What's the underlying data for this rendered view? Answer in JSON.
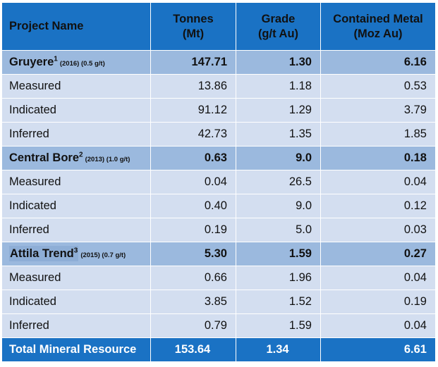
{
  "headers": {
    "name": "Project Name",
    "tonnes": [
      "Tonnes",
      "(Mt)"
    ],
    "grade": [
      "Grade",
      "(g/t Au)"
    ],
    "metal": [
      "Contained Metal",
      "(Moz Au)"
    ]
  },
  "groups": [
    {
      "name": "Gruyere",
      "sup": "1",
      "note": "(2016) (0.5 g/t)",
      "tonnes": "147.71",
      "grade": "1.30",
      "metal": "6.16",
      "rows": [
        {
          "label": "Measured",
          "tonnes": "13.86",
          "grade": "1.18",
          "metal": "0.53"
        },
        {
          "label": "Indicated",
          "tonnes": "91.12",
          "grade": "1.29",
          "metal": "3.79"
        },
        {
          "label": "Inferred",
          "tonnes": "42.73",
          "grade": "1.35",
          "metal": "1.85"
        }
      ]
    },
    {
      "name": "Central Bore",
      "sup": "2",
      "note": "(2013) (1.0 g/t)",
      "tonnes": "0.63",
      "grade": "9.0",
      "metal": "0.18",
      "rows": [
        {
          "label": "Measured",
          "tonnes": "0.04",
          "grade": "26.5",
          "metal": "0.04"
        },
        {
          "label": "Indicated",
          "tonnes": "0.40",
          "grade": "9.0",
          "metal": "0.12"
        },
        {
          "label": "Inferred",
          "tonnes": "0.19",
          "grade": "5.0",
          "metal": "0.03"
        }
      ]
    },
    {
      "name": "Attila Trend",
      "sup": "3",
      "note": "(2015) (0.7 g/t)",
      "tonnes": "5.30",
      "grade": "1.59",
      "metal": "0.27",
      "rows": [
        {
          "label": "Measured",
          "tonnes": "0.66",
          "grade": "1.96",
          "metal": "0.04"
        },
        {
          "label": "Indicated",
          "tonnes": "3.85",
          "grade": "1.52",
          "metal": "0.19"
        },
        {
          "label": "Inferred",
          "tonnes": "0.79",
          "grade": "1.59",
          "metal": "0.04"
        }
      ]
    }
  ],
  "total": {
    "label": "Total Mineral Resource",
    "tonnes": "153.64",
    "grade": "1.34",
    "metal": "6.61"
  },
  "colors": {
    "header_bg": "#1a72c4",
    "group_bg": "#9bb9de",
    "row_bg": "#d3def0",
    "text": "#111111",
    "header_text": "#ffffff"
  }
}
